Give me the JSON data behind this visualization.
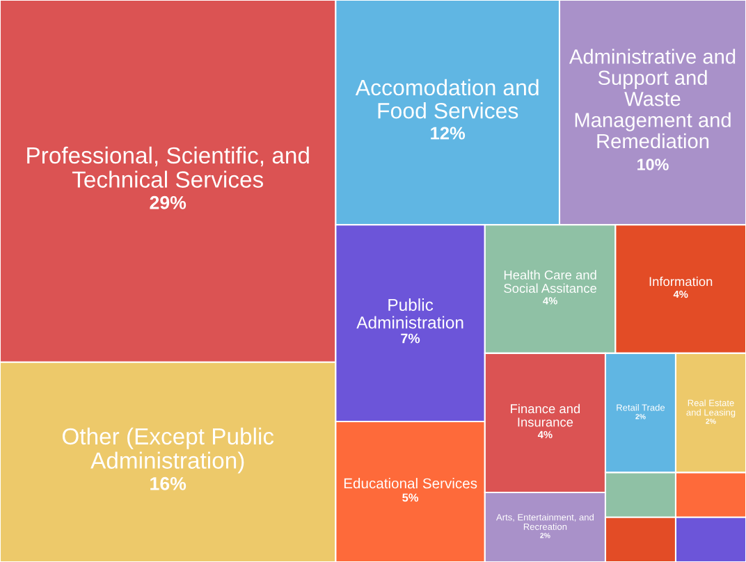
{
  "chart_data": {
    "type": "other",
    "categories": [
      "Professional, Scientific, and Technical Services",
      "Other (Except Public Administration)",
      "Accomodation and Food Services",
      "Administrative and Support and Waste Management and Remediation",
      "Public Administration",
      "Educational Services",
      "Health Care and Social Assitance",
      "Information",
      "Finance and Insurance",
      "Arts, Entertainment, and Recreation",
      "Retail Trade",
      "Real Estate and Leasing",
      null,
      null,
      null,
      null
    ],
    "values": [
      29,
      16,
      12,
      10,
      7,
      5,
      4,
      4,
      4,
      2,
      2,
      2,
      null,
      null,
      null,
      null
    ],
    "value_labels": [
      "29%",
      "16%",
      "12%",
      "10%",
      "7%",
      "5%",
      "4%",
      "4%",
      "4%",
      "2%",
      "2%",
      "2%",
      null,
      null,
      null,
      null
    ],
    "colors": [
      "#db5353",
      "#edc96a",
      "#60b6e3",
      "#a991c9",
      "#6c55d9",
      "#fe6a3a",
      "#8fc1a5",
      "#e34c26",
      "#db5353",
      "#a991c9",
      "#60b6e3",
      "#edc96a",
      "#8fc1a5",
      "#e34c26",
      "#fe6a3a",
      "#6c55d9"
    ]
  }
}
